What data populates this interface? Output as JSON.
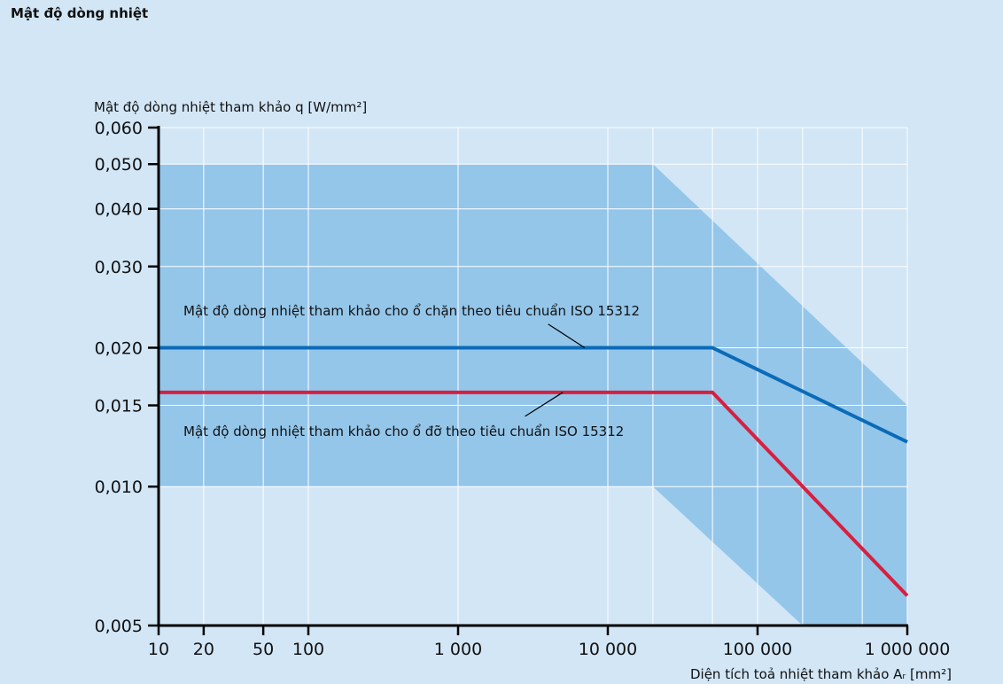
{
  "page": {
    "title": "Mật độ dòng nhiệt"
  },
  "colors": {
    "background": "#d2e6f6",
    "band": "#94c6ea",
    "grid": "#ffffff",
    "axis": "#000000",
    "series_blue": "#0a6bb8",
    "series_red": "#d81f3f"
  },
  "chart_data": {
    "type": "line",
    "x_scale": "log",
    "y_scale": "log",
    "xlim": [
      10,
      1000000
    ],
    "ylim": [
      0.005,
      0.06
    ],
    "grid": true,
    "ylabel": "Mật độ dòng nhiệt tham khảo q [W/mm²]",
    "xlabel": "Diện tích toả nhiệt tham khảo Aᵣ [mm²]",
    "x_ticks": [
      {
        "value": 10,
        "label": "10"
      },
      {
        "value": 20,
        "label": "20"
      },
      {
        "value": 50,
        "label": "50"
      },
      {
        "value": 100,
        "label": "100"
      },
      {
        "value": 1000,
        "label": "1 000"
      },
      {
        "value": 10000,
        "label": "10 000"
      },
      {
        "value": 100000,
        "label": "100 000"
      },
      {
        "value": 1000000,
        "label": "1 000 000"
      }
    ],
    "y_ticks": [
      {
        "value": 0.06,
        "label": "0,060"
      },
      {
        "value": 0.05,
        "label": "0,050"
      },
      {
        "value": 0.04,
        "label": "0,040"
      },
      {
        "value": 0.03,
        "label": "0,030"
      },
      {
        "value": 0.02,
        "label": "0,020"
      },
      {
        "value": 0.015,
        "label": "0,015"
      },
      {
        "value": 0.01,
        "label": "0,010"
      },
      {
        "value": 0.005,
        "label": "0,005"
      }
    ],
    "x_grid": [
      20,
      50,
      100,
      1000,
      10000,
      20000,
      50000,
      100000,
      200000,
      500000
    ],
    "band": {
      "points": [
        [
          10,
          0.05
        ],
        [
          20000,
          0.05
        ],
        [
          1000000,
          0.015
        ],
        [
          1000000,
          0.005
        ],
        [
          200000,
          0.005
        ],
        [
          20000,
          0.01
        ],
        [
          10,
          0.01
        ]
      ]
    },
    "series": [
      {
        "key": "blue",
        "x": [
          10,
          50000,
          1000000
        ],
        "y": [
          0.02,
          0.02,
          0.0125
        ]
      },
      {
        "key": "red",
        "x": [
          10,
          50000,
          1000000
        ],
        "y": [
          0.016,
          0.016,
          0.0058
        ]
      }
    ],
    "annotations": [
      {
        "text": "Mật độ dòng nhiệt tham khảo cho ổ chặn theo tiêu chuẩn ISO 15312",
        "target": [
          7000,
          0.02
        ],
        "leader_from": [
          4000,
          0.0225
        ]
      },
      {
        "text": "Mật độ dòng nhiệt tham khảo cho ổ đỡ theo tiêu chuẩn ISO 15312",
        "target": [
          5000,
          0.016
        ],
        "leader_from": [
          2800,
          0.0142
        ]
      }
    ]
  }
}
